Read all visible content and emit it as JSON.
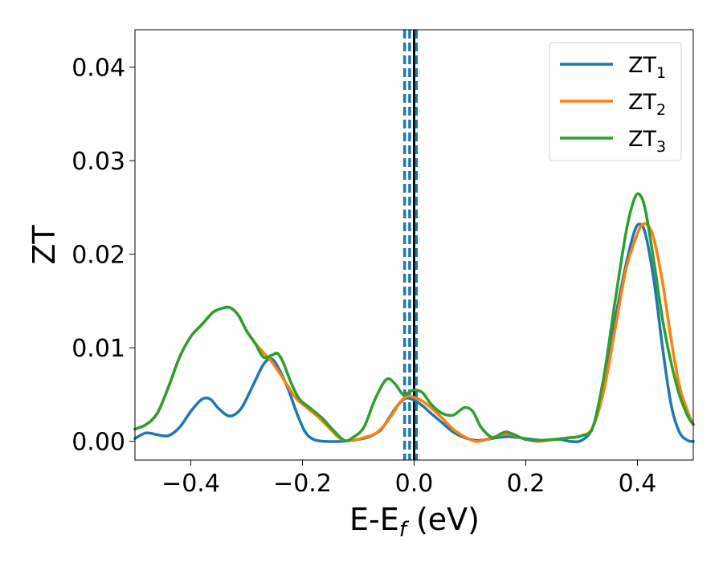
{
  "chart_data": {
    "type": "line",
    "xlabel": "E-E",
    "xlabel_sub": "f",
    "xlabel_unit": " (eV)",
    "ylabel": "ZT",
    "xlim": [
      -0.5,
      0.5
    ],
    "ylim": [
      -0.002,
      0.044
    ],
    "xticks": [
      -0.4,
      -0.2,
      0.0,
      0.2,
      0.4
    ],
    "xtick_labels": [
      "−0.4",
      "−0.2",
      "0.0",
      "0.2",
      "0.4"
    ],
    "yticks": [
      0.0,
      0.01,
      0.02,
      0.03,
      0.04
    ],
    "ytick_labels": [
      "0.00",
      "0.01",
      "0.02",
      "0.03",
      "0.04"
    ],
    "grid": false,
    "legend_position": "top-right",
    "vertical_lines": [
      {
        "x": -0.017,
        "style": "dashed",
        "color": "#1f77b4"
      },
      {
        "x": -0.008,
        "style": "dashed",
        "color": "#1f77b4"
      },
      {
        "x": 0.0,
        "style": "solid",
        "color": "#000000"
      },
      {
        "x": 0.004,
        "style": "dashed",
        "color": "#1f77b4"
      }
    ],
    "series": [
      {
        "name": "ZT",
        "name_sub": "1",
        "color": "#1f77b4",
        "points": [
          [
            -0.5,
            0.0003
          ],
          [
            -0.48,
            0.0009
          ],
          [
            -0.46,
            0.0007
          ],
          [
            -0.44,
            0.0006
          ],
          [
            -0.42,
            0.0015
          ],
          [
            -0.4,
            0.0032
          ],
          [
            -0.38,
            0.0045
          ],
          [
            -0.365,
            0.0045
          ],
          [
            -0.35,
            0.0035
          ],
          [
            -0.33,
            0.0027
          ],
          [
            -0.31,
            0.0035
          ],
          [
            -0.29,
            0.0058
          ],
          [
            -0.27,
            0.0082
          ],
          [
            -0.255,
            0.0088
          ],
          [
            -0.24,
            0.0075
          ],
          [
            -0.225,
            0.0055
          ],
          [
            -0.21,
            0.003
          ],
          [
            -0.195,
            0.001
          ],
          [
            -0.18,
            0.0002
          ],
          [
            -0.16,
            0.0
          ],
          [
            -0.13,
            0.0
          ],
          [
            -0.1,
            0.0002
          ],
          [
            -0.08,
            0.0005
          ],
          [
            -0.06,
            0.0012
          ],
          [
            -0.045,
            0.0025
          ],
          [
            -0.03,
            0.0038
          ],
          [
            -0.015,
            0.0046
          ],
          [
            0.0,
            0.0044
          ],
          [
            0.015,
            0.0038
          ],
          [
            0.03,
            0.003
          ],
          [
            0.05,
            0.002
          ],
          [
            0.07,
            0.001
          ],
          [
            0.09,
            0.0004
          ],
          [
            0.11,
            0.0001
          ],
          [
            0.13,
            0.0002
          ],
          [
            0.15,
            0.0004
          ],
          [
            0.17,
            0.0005
          ],
          [
            0.2,
            0.0003
          ],
          [
            0.23,
            0.0001
          ],
          [
            0.26,
            0.0002
          ],
          [
            0.28,
            0.0
          ],
          [
            0.3,
            0.0001
          ],
          [
            0.32,
            0.0015
          ],
          [
            0.34,
            0.006
          ],
          [
            0.36,
            0.013
          ],
          [
            0.38,
            0.019
          ],
          [
            0.395,
            0.0225
          ],
          [
            0.405,
            0.0232
          ],
          [
            0.415,
            0.022
          ],
          [
            0.43,
            0.017
          ],
          [
            0.445,
            0.01
          ],
          [
            0.46,
            0.004
          ],
          [
            0.475,
            0.001
          ],
          [
            0.49,
            0.0001
          ],
          [
            0.5,
            0.0
          ]
        ]
      },
      {
        "name": "ZT",
        "name_sub": "2",
        "color": "#ff7f0e",
        "points": [
          [
            -0.5,
            0.0013
          ],
          [
            -0.48,
            0.0018
          ],
          [
            -0.46,
            0.003
          ],
          [
            -0.44,
            0.0058
          ],
          [
            -0.42,
            0.009
          ],
          [
            -0.4,
            0.0112
          ],
          [
            -0.38,
            0.0125
          ],
          [
            -0.36,
            0.0138
          ],
          [
            -0.345,
            0.0142
          ],
          [
            -0.33,
            0.0143
          ],
          [
            -0.315,
            0.0135
          ],
          [
            -0.3,
            0.0118
          ],
          [
            -0.285,
            0.0105
          ],
          [
            -0.27,
            0.0095
          ],
          [
            -0.255,
            0.0085
          ],
          [
            -0.24,
            0.0072
          ],
          [
            -0.225,
            0.0058
          ],
          [
            -0.21,
            0.0045
          ],
          [
            -0.19,
            0.0035
          ],
          [
            -0.17,
            0.0025
          ],
          [
            -0.15,
            0.0013
          ],
          [
            -0.13,
            0.0002
          ],
          [
            -0.11,
            0.0001
          ],
          [
            -0.09,
            0.0004
          ],
          [
            -0.07,
            0.0008
          ],
          [
            -0.055,
            0.0016
          ],
          [
            -0.04,
            0.0028
          ],
          [
            -0.025,
            0.0042
          ],
          [
            -0.012,
            0.0048
          ],
          [
            0.0,
            0.0047
          ],
          [
            0.015,
            0.0043
          ],
          [
            0.03,
            0.0036
          ],
          [
            0.05,
            0.0025
          ],
          [
            0.07,
            0.0013
          ],
          [
            0.09,
            0.0005
          ],
          [
            0.11,
            0.0
          ],
          [
            0.13,
            0.0002
          ],
          [
            0.15,
            0.0006
          ],
          [
            0.17,
            0.0008
          ],
          [
            0.19,
            0.0004
          ],
          [
            0.22,
            0.0
          ],
          [
            0.25,
            0.0002
          ],
          [
            0.28,
            0.0004
          ],
          [
            0.3,
            0.0006
          ],
          [
            0.32,
            0.0015
          ],
          [
            0.34,
            0.0055
          ],
          [
            0.36,
            0.012
          ],
          [
            0.38,
            0.0185
          ],
          [
            0.4,
            0.0222
          ],
          [
            0.41,
            0.0232
          ],
          [
            0.42,
            0.023
          ],
          [
            0.43,
            0.0215
          ],
          [
            0.445,
            0.017
          ],
          [
            0.46,
            0.011
          ],
          [
            0.475,
            0.006
          ],
          [
            0.49,
            0.0032
          ],
          [
            0.5,
            0.0018
          ]
        ]
      },
      {
        "name": "ZT",
        "name_sub": "3",
        "color": "#2ca02c",
        "points": [
          [
            -0.5,
            0.0013
          ],
          [
            -0.48,
            0.0018
          ],
          [
            -0.46,
            0.003
          ],
          [
            -0.44,
            0.0058
          ],
          [
            -0.42,
            0.009
          ],
          [
            -0.4,
            0.0112
          ],
          [
            -0.38,
            0.0125
          ],
          [
            -0.36,
            0.0138
          ],
          [
            -0.345,
            0.0142
          ],
          [
            -0.33,
            0.0143
          ],
          [
            -0.315,
            0.0135
          ],
          [
            -0.3,
            0.0118
          ],
          [
            -0.285,
            0.0105
          ],
          [
            -0.27,
            0.009
          ],
          [
            -0.255,
            0.0092
          ],
          [
            -0.245,
            0.0094
          ],
          [
            -0.235,
            0.0085
          ],
          [
            -0.22,
            0.0062
          ],
          [
            -0.205,
            0.0045
          ],
          [
            -0.185,
            0.0035
          ],
          [
            -0.165,
            0.0025
          ],
          [
            -0.145,
            0.0012
          ],
          [
            -0.125,
            0.0001
          ],
          [
            -0.11,
            0.0004
          ],
          [
            -0.09,
            0.0015
          ],
          [
            -0.07,
            0.0045
          ],
          [
            -0.05,
            0.0066
          ],
          [
            -0.035,
            0.0062
          ],
          [
            -0.02,
            0.005
          ],
          [
            -0.01,
            0.0052
          ],
          [
            0.0,
            0.0055
          ],
          [
            0.015,
            0.0052
          ],
          [
            0.03,
            0.004
          ],
          [
            0.05,
            0.003
          ],
          [
            0.07,
            0.0028
          ],
          [
            0.09,
            0.0036
          ],
          [
            0.105,
            0.0032
          ],
          [
            0.12,
            0.0015
          ],
          [
            0.14,
            0.0004
          ],
          [
            0.155,
            0.0008
          ],
          [
            0.165,
            0.001
          ],
          [
            0.18,
            0.0007
          ],
          [
            0.2,
            0.0002
          ],
          [
            0.22,
            0.0001
          ],
          [
            0.25,
            0.0002
          ],
          [
            0.28,
            0.0004
          ],
          [
            0.3,
            0.0006
          ],
          [
            0.32,
            0.0015
          ],
          [
            0.34,
            0.007
          ],
          [
            0.36,
            0.015
          ],
          [
            0.38,
            0.0225
          ],
          [
            0.395,
            0.026
          ],
          [
            0.405,
            0.0263
          ],
          [
            0.415,
            0.0245
          ],
          [
            0.43,
            0.019
          ],
          [
            0.445,
            0.013
          ],
          [
            0.46,
            0.0085
          ],
          [
            0.475,
            0.005
          ],
          [
            0.49,
            0.0027
          ],
          [
            0.5,
            0.0018
          ]
        ]
      }
    ]
  }
}
